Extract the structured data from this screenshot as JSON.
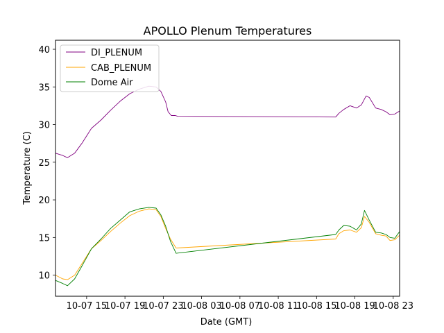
{
  "chart_data": {
    "type": "line",
    "title": "APOLLO Plenum Temperatures",
    "xlabel": "Date (GMT)",
    "ylabel": "Temperature (C)",
    "xlim": [
      "10-07 11:45",
      "10-08 23:40"
    ],
    "ylim": [
      7.2,
      41.2
    ],
    "xticks": [
      "10-07 15",
      "10-07 19",
      "10-07 23",
      "10-08 03",
      "10-08 07",
      "10-08 11",
      "10-08 15",
      "10-08 19",
      "10-08 23"
    ],
    "xtick_values": [
      "10-07 15:00",
      "10-07 19:00",
      "10-07 23:00",
      "10-08 03:00",
      "10-08 07:00",
      "10-08 11:00",
      "10-08 15:00",
      "10-08 19:00",
      "10-08 23:00"
    ],
    "yticks": [
      10,
      15,
      20,
      25,
      30,
      35,
      40
    ],
    "grid": false,
    "legend_position": "top-left",
    "series": [
      {
        "name": "DI_PLENUM",
        "color": "#800080",
        "x": [
          "10-07 11:45",
          "10-07 12:30",
          "10-07 13:00",
          "10-07 13:45",
          "10-07 14:30",
          "10-07 15:30",
          "10-07 16:30",
          "10-07 17:30",
          "10-07 18:30",
          "10-07 19:30",
          "10-07 20:30",
          "10-07 21:30",
          "10-07 22:15",
          "10-07 22:45",
          "10-07 23:15",
          "10-07 23:30",
          "10-07 23:50",
          "10-08 00:15",
          "10-08 00:30",
          "10-08 17:00",
          "10-08 17:20",
          "10-08 17:50",
          "10-08 18:30",
          "10-08 19:10",
          "10-08 19:40",
          "10-08 20:10",
          "10-08 20:30",
          "10-08 21:10",
          "10-08 21:45",
          "10-08 22:15",
          "10-08 22:40",
          "10-08 23:10",
          "10-08 23:40"
        ],
        "values": [
          26.2,
          25.9,
          25.6,
          26.2,
          27.5,
          29.5,
          30.6,
          31.9,
          33.1,
          34.1,
          34.7,
          35.1,
          35.0,
          34.4,
          33.0,
          31.7,
          31.2,
          31.2,
          31.1,
          31.0,
          31.5,
          32.0,
          32.5,
          32.2,
          32.6,
          33.8,
          33.6,
          32.2,
          32.0,
          31.7,
          31.3,
          31.4,
          31.8
        ]
      },
      {
        "name": "CAB_PLENUM",
        "color": "#ffa500",
        "x": [
          "10-07 11:45",
          "10-07 12:30",
          "10-07 13:00",
          "10-07 13:45",
          "10-07 14:30",
          "10-07 15:30",
          "10-07 16:30",
          "10-07 17:30",
          "10-07 18:30",
          "10-07 19:30",
          "10-07 20:30",
          "10-07 21:30",
          "10-07 22:15",
          "10-07 22:45",
          "10-07 23:15",
          "10-07 23:45",
          "10-08 00:20",
          "10-08 17:00",
          "10-08 17:20",
          "10-08 17:50",
          "10-08 18:30",
          "10-08 19:10",
          "10-08 19:40",
          "10-08 20:00",
          "10-08 20:30",
          "10-08 21:10",
          "10-08 21:45",
          "10-08 22:15",
          "10-08 22:40",
          "10-08 23:10",
          "10-08 23:40"
        ],
        "values": [
          10.0,
          9.5,
          9.4,
          10.0,
          11.5,
          13.5,
          14.6,
          15.8,
          16.9,
          17.9,
          18.5,
          18.8,
          18.7,
          17.8,
          16.2,
          14.8,
          13.6,
          14.8,
          15.5,
          15.9,
          16.0,
          15.7,
          16.3,
          17.8,
          17.0,
          15.5,
          15.3,
          15.2,
          14.6,
          14.7,
          15.3
        ]
      },
      {
        "name": "Dome Air",
        "color": "#008000",
        "x": [
          "10-07 11:45",
          "10-07 12:30",
          "10-07 13:00",
          "10-07 13:45",
          "10-07 14:30",
          "10-07 15:30",
          "10-07 16:30",
          "10-07 17:30",
          "10-07 18:30",
          "10-07 19:30",
          "10-07 20:30",
          "10-07 21:30",
          "10-07 22:15",
          "10-07 22:45",
          "10-07 23:15",
          "10-07 23:45",
          "10-08 00:20",
          "10-08 17:00",
          "10-08 17:20",
          "10-08 17:50",
          "10-08 18:30",
          "10-08 19:10",
          "10-08 19:40",
          "10-08 20:00",
          "10-08 20:30",
          "10-08 21:10",
          "10-08 21:45",
          "10-08 22:15",
          "10-08 22:40",
          "10-08 23:10",
          "10-08 23:40"
        ],
        "values": [
          9.3,
          8.9,
          8.6,
          9.5,
          11.2,
          13.5,
          14.8,
          16.2,
          17.3,
          18.4,
          18.8,
          19.0,
          18.9,
          18.0,
          16.5,
          14.5,
          12.9,
          15.4,
          16.0,
          16.6,
          16.5,
          16.0,
          16.8,
          18.6,
          17.3,
          15.7,
          15.6,
          15.4,
          15.0,
          14.9,
          15.8
        ]
      }
    ]
  }
}
